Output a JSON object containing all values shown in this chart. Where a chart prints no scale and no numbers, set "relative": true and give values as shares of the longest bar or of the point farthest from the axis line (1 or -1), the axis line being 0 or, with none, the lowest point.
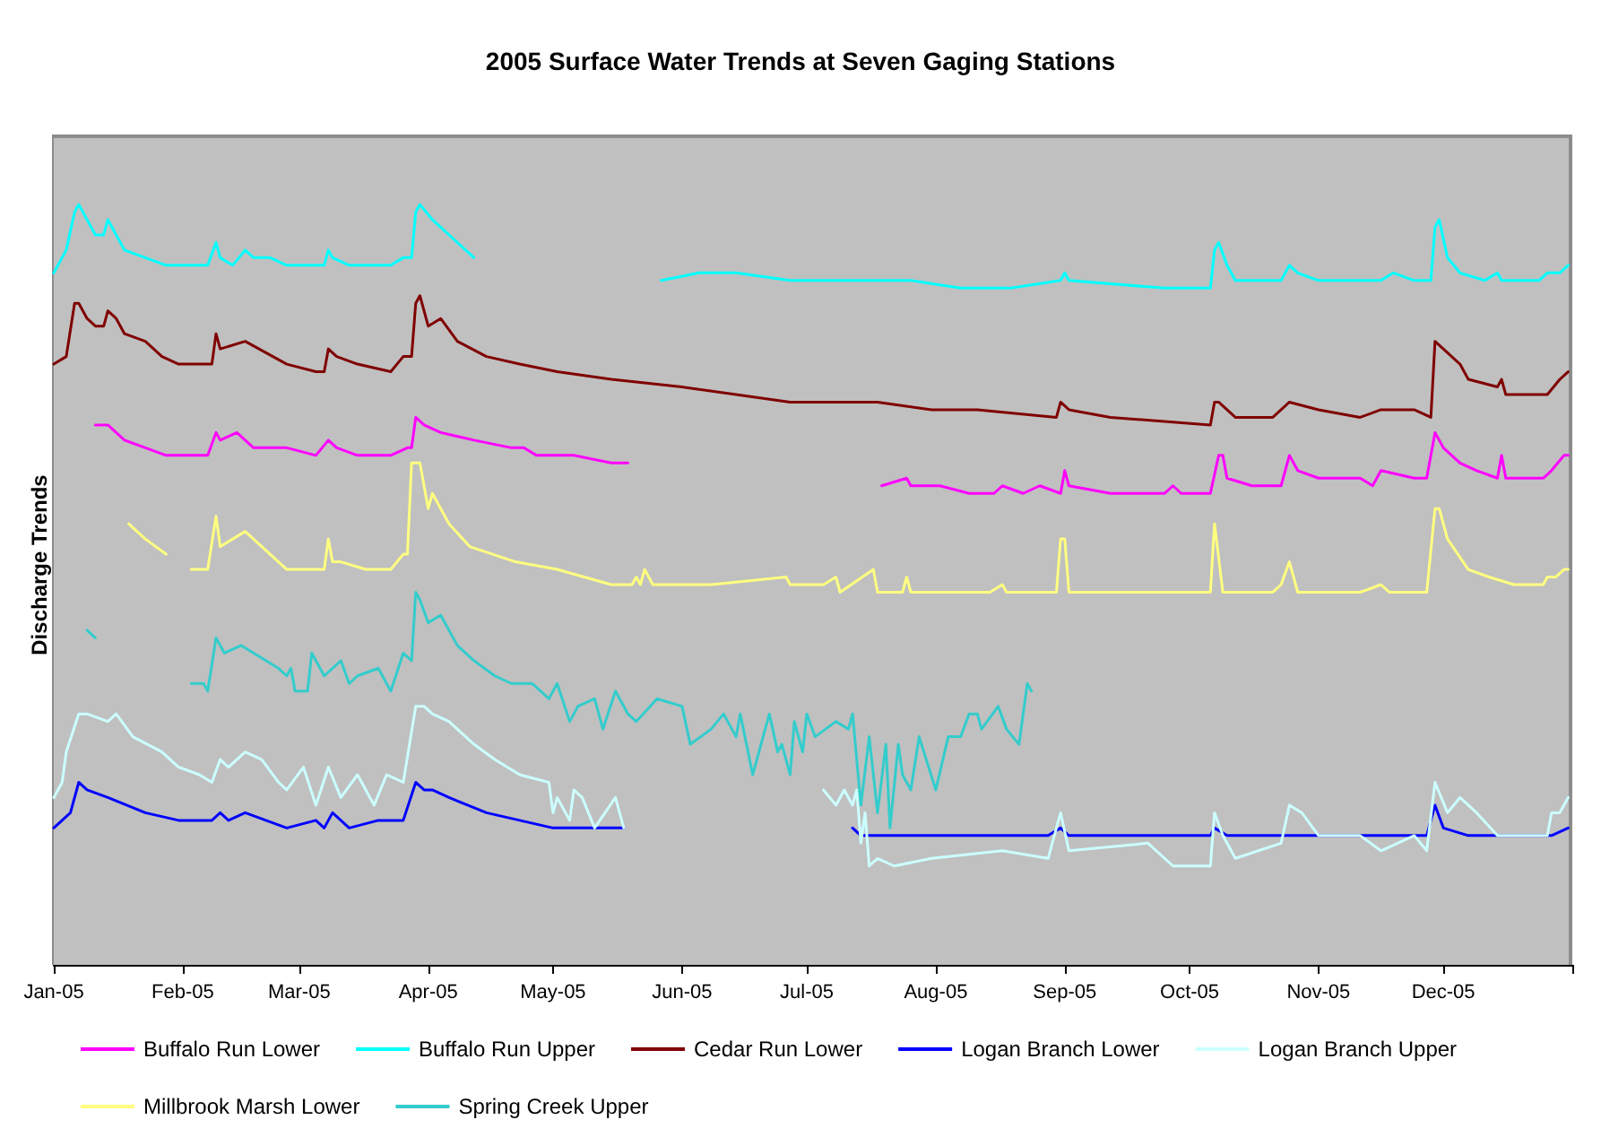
{
  "chart_data": {
    "type": "line",
    "title": "2005 Surface Water Trends at Seven Gaging Stations",
    "ylabel": "Discharge Trends",
    "relative": true,
    "legend": "bottom",
    "marker": "none",
    "line_style": "solid",
    "xlim": [
      "2005-01-01",
      "2006-01-01"
    ],
    "xticks": [
      {
        "value": "2005-01-01",
        "label": "Jan-05"
      },
      {
        "value": "2005-02-01",
        "label": "Feb-05"
      },
      {
        "value": "2005-03-01",
        "label": "Mar-05"
      },
      {
        "value": "2005-04-01",
        "label": "Apr-05"
      },
      {
        "value": "2005-05-01",
        "label": "May-05"
      },
      {
        "value": "2005-06-01",
        "label": "Jun-05"
      },
      {
        "value": "2005-07-01",
        "label": "Jul-05"
      },
      {
        "value": "2005-08-01",
        "label": "Aug-05"
      },
      {
        "value": "2005-09-01",
        "label": "Sep-05"
      },
      {
        "value": "2005-10-01",
        "label": "Oct-05"
      },
      {
        "value": "2005-11-01",
        "label": "Nov-05"
      },
      {
        "value": "2005-12-01",
        "label": "Dec-05"
      },
      {
        "value": "2006-01-01",
        "label": null
      }
    ],
    "series": [
      {
        "name": "Buffalo Run Lower",
        "color": "#ff00ff",
        "x": [
          "2005-01-11",
          "2005-01-12",
          "2005-01-14",
          "2005-01-18",
          "2005-01-23",
          "2005-01-28",
          "2005-01-31",
          "2005-02-07",
          "2005-02-09",
          "2005-02-10",
          "2005-02-14",
          "2005-02-18",
          "2005-02-26",
          "2005-03-05",
          "2005-03-08",
          "2005-03-10",
          "2005-03-15",
          "2005-03-23",
          "2005-03-27",
          "2005-03-28",
          "2005-03-29",
          "2005-03-31",
          "2005-04-04",
          "2005-04-12",
          "2005-04-21",
          "2005-04-24",
          "2005-04-27",
          "2005-05-06",
          "2005-05-15",
          "2005-05-16",
          "2005-05-19",
          "2005-06-20",
          "2005-07-19",
          "2005-07-25",
          "2005-07-26",
          "2005-08-02",
          "2005-08-09",
          "2005-08-15",
          "2005-08-17",
          "2005-08-22",
          "2005-08-26",
          "2005-08-31",
          "2005-09-01",
          "2005-09-02",
          "2005-09-12",
          "2005-09-25",
          "2005-09-27",
          "2005-09-29",
          "2005-10-06",
          "2005-10-08",
          "2005-10-09",
          "2005-10-10",
          "2005-10-16",
          "2005-10-23",
          "2005-10-25",
          "2005-10-27",
          "2005-11-01",
          "2005-11-11",
          "2005-11-14",
          "2005-11-16",
          "2005-11-24",
          "2005-11-27",
          "2005-11-29",
          "2005-12-01",
          "2005-12-05",
          "2005-12-09",
          "2005-12-14",
          "2005-12-15",
          "2005-12-16",
          "2005-12-25",
          "2005-12-27",
          "2005-12-30",
          "2005-12-31"
        ],
        "values": [
          0.71,
          0.71,
          0.71,
          0.69,
          0.68,
          0.67,
          0.67,
          0.67,
          0.7,
          0.69,
          0.7,
          0.68,
          0.68,
          0.67,
          0.69,
          0.68,
          0.67,
          0.67,
          0.68,
          0.68,
          0.72,
          0.71,
          0.7,
          0.69,
          0.68,
          0.68,
          0.67,
          0.67,
          0.66,
          0.66,
          0.66,
          null,
          0.63,
          0.64,
          0.63,
          0.63,
          0.62,
          0.62,
          0.63,
          0.62,
          0.63,
          0.62,
          0.65,
          0.63,
          0.62,
          0.62,
          0.63,
          0.62,
          0.62,
          0.67,
          0.67,
          0.64,
          0.63,
          0.63,
          0.67,
          0.65,
          0.64,
          0.64,
          0.63,
          0.65,
          0.64,
          0.64,
          0.7,
          0.68,
          0.66,
          0.65,
          0.64,
          0.67,
          0.64,
          0.64,
          0.65,
          0.67,
          0.67
        ]
      },
      {
        "name": "Buffalo Run Upper",
        "color": "#00ffff",
        "x": [
          "2005-01-01",
          "2005-01-04",
          "2005-01-06",
          "2005-01-07",
          "2005-01-09",
          "2005-01-11",
          "2005-01-13",
          "2005-01-14",
          "2005-01-16",
          "2005-01-18",
          "2005-01-23",
          "2005-01-28",
          "2005-01-31",
          "2005-02-05",
          "2005-02-07",
          "2005-02-09",
          "2005-02-10",
          "2005-02-13",
          "2005-02-16",
          "2005-02-18",
          "2005-02-22",
          "2005-02-26",
          "2005-03-05",
          "2005-03-07",
          "2005-03-08",
          "2005-03-09",
          "2005-03-13",
          "2005-03-23",
          "2005-03-26",
          "2005-03-28",
          "2005-03-29",
          "2005-03-30",
          "2005-04-02",
          "2005-04-04",
          "2005-04-08",
          "2005-04-12",
          "2005-04-20",
          "2005-05-27",
          "2005-06-05",
          "2005-06-08",
          "2005-06-14",
          "2005-06-27",
          "2005-07-05",
          "2005-07-07",
          "2005-07-18",
          "2005-07-26",
          "2005-08-07",
          "2005-08-19",
          "2005-08-31",
          "2005-09-01",
          "2005-09-02",
          "2005-09-25",
          "2005-10-06",
          "2005-10-07",
          "2005-10-08",
          "2005-10-10",
          "2005-10-12",
          "2005-10-23",
          "2005-10-25",
          "2005-10-27",
          "2005-11-01",
          "2005-11-16",
          "2005-11-19",
          "2005-11-24",
          "2005-11-28",
          "2005-11-29",
          "2005-11-30",
          "2005-12-02",
          "2005-12-05",
          "2005-12-11",
          "2005-12-14",
          "2005-12-15",
          "2005-12-24",
          "2005-12-26",
          "2005-12-29",
          "2005-12-31"
        ],
        "values": [
          0.91,
          0.94,
          0.99,
          1.0,
          0.98,
          0.96,
          0.96,
          0.98,
          0.96,
          0.94,
          0.93,
          0.92,
          0.92,
          0.92,
          0.92,
          0.95,
          0.93,
          0.92,
          0.94,
          0.93,
          0.93,
          0.92,
          0.92,
          0.92,
          0.94,
          0.93,
          0.92,
          0.92,
          0.93,
          0.93,
          0.99,
          1.0,
          0.98,
          0.97,
          0.95,
          0.93,
          null,
          0.9,
          0.91,
          0.91,
          0.91,
          0.9,
          0.9,
          0.9,
          0.9,
          0.9,
          0.89,
          0.89,
          0.9,
          0.91,
          0.9,
          0.89,
          0.89,
          0.94,
          0.95,
          0.92,
          0.9,
          0.9,
          0.92,
          0.91,
          0.9,
          0.9,
          0.91,
          0.9,
          0.9,
          0.97,
          0.98,
          0.93,
          0.91,
          0.9,
          0.91,
          0.9,
          0.9,
          0.91,
          0.91,
          0.92
        ]
      },
      {
        "name": "Cedar Run Lower",
        "color": "#800000",
        "x": [
          "2005-01-01",
          "2005-01-04",
          "2005-01-06",
          "2005-01-07",
          "2005-01-09",
          "2005-01-11",
          "2005-01-13",
          "2005-01-14",
          "2005-01-16",
          "2005-01-18",
          "2005-01-23",
          "2005-01-27",
          "2005-01-31",
          "2005-02-05",
          "2005-02-08",
          "2005-02-09",
          "2005-02-10",
          "2005-02-16",
          "2005-02-26",
          "2005-03-05",
          "2005-03-07",
          "2005-03-08",
          "2005-03-10",
          "2005-03-15",
          "2005-03-23",
          "2005-03-26",
          "2005-03-28",
          "2005-03-29",
          "2005-03-30",
          "2005-04-01",
          "2005-04-04",
          "2005-04-08",
          "2005-04-15",
          "2005-04-23",
          "2005-05-02",
          "2005-05-15",
          "2005-06-01",
          "2005-06-14",
          "2005-06-27",
          "2005-07-04",
          "2005-07-08",
          "2005-07-18",
          "2005-07-31",
          "2005-08-11",
          "2005-08-30",
          "2005-08-31",
          "2005-09-02",
          "2005-09-12",
          "2005-10-06",
          "2005-10-07",
          "2005-10-08",
          "2005-10-12",
          "2005-10-21",
          "2005-10-25",
          "2005-11-01",
          "2005-11-11",
          "2005-11-16",
          "2005-11-24",
          "2005-11-28",
          "2005-11-29",
          "2005-12-01",
          "2005-12-05",
          "2005-12-07",
          "2005-12-14",
          "2005-12-15",
          "2005-12-16",
          "2005-12-23",
          "2005-12-26",
          "2005-12-29",
          "2005-12-31"
        ],
        "values": [
          0.79,
          0.8,
          0.87,
          0.87,
          0.85,
          0.84,
          0.84,
          0.86,
          0.85,
          0.83,
          0.82,
          0.8,
          0.79,
          0.79,
          0.79,
          0.83,
          0.81,
          0.82,
          0.79,
          0.78,
          0.78,
          0.81,
          0.8,
          0.79,
          0.78,
          0.8,
          0.8,
          0.87,
          0.88,
          0.84,
          0.85,
          0.82,
          0.8,
          0.79,
          0.78,
          0.77,
          0.76,
          0.75,
          0.74,
          0.74,
          0.74,
          0.74,
          0.73,
          0.73,
          0.72,
          0.74,
          0.73,
          0.72,
          0.71,
          0.74,
          0.74,
          0.72,
          0.72,
          0.74,
          0.73,
          0.72,
          0.73,
          0.73,
          0.72,
          0.82,
          0.81,
          0.79,
          0.77,
          0.76,
          0.77,
          0.75,
          0.75,
          0.75,
          0.77,
          0.78
        ]
      },
      {
        "name": "Logan Branch Lower",
        "color": "#0000ff",
        "x": [
          "2005-01-01",
          "2005-01-03",
          "2005-01-05",
          "2005-01-07",
          "2005-01-09",
          "2005-01-14",
          "2005-01-23",
          "2005-01-31",
          "2005-02-08",
          "2005-02-10",
          "2005-02-12",
          "2005-02-16",
          "2005-02-26",
          "2005-03-05",
          "2005-03-07",
          "2005-03-09",
          "2005-03-13",
          "2005-03-20",
          "2005-03-26",
          "2005-03-29",
          "2005-03-31",
          "2005-04-02",
          "2005-04-06",
          "2005-04-15",
          "2005-04-23",
          "2005-05-01",
          "2005-05-06",
          "2005-05-18",
          "2005-06-20",
          "2005-07-12",
          "2005-07-14",
          "2005-07-22",
          "2005-08-09",
          "2005-08-28",
          "2005-08-31",
          "2005-09-02",
          "2005-09-21",
          "2005-10-06",
          "2005-10-07",
          "2005-10-10",
          "2005-10-23",
          "2005-10-25",
          "2005-11-11",
          "2005-11-27",
          "2005-11-29",
          "2005-12-01",
          "2005-12-07",
          "2005-12-16",
          "2005-12-27",
          "2005-12-31"
        ],
        "values": [
          0.18,
          0.19,
          0.2,
          0.24,
          0.23,
          0.22,
          0.2,
          0.19,
          0.19,
          0.2,
          0.19,
          0.2,
          0.18,
          0.19,
          0.18,
          0.2,
          0.18,
          0.19,
          0.19,
          0.24,
          0.23,
          0.23,
          0.22,
          0.2,
          0.19,
          0.18,
          0.18,
          0.18,
          null,
          0.18,
          0.17,
          0.17,
          0.17,
          0.17,
          0.18,
          0.17,
          0.17,
          0.17,
          0.18,
          0.17,
          0.17,
          0.17,
          0.17,
          0.17,
          0.21,
          0.18,
          0.17,
          0.17,
          0.17,
          0.18
        ]
      },
      {
        "name": "Logan Branch Upper",
        "color": "#ccffff",
        "x": [
          "2005-01-01",
          "2005-01-03",
          "2005-01-04",
          "2005-01-07",
          "2005-01-09",
          "2005-01-14",
          "2005-01-16",
          "2005-01-20",
          "2005-01-27",
          "2005-01-31",
          "2005-02-05",
          "2005-02-08",
          "2005-02-10",
          "2005-02-12",
          "2005-02-16",
          "2005-02-20",
          "2005-02-24",
          "2005-02-26",
          "2005-03-02",
          "2005-03-05",
          "2005-03-08",
          "2005-03-11",
          "2005-03-15",
          "2005-03-19",
          "2005-03-22",
          "2005-03-26",
          "2005-03-29",
          "2005-03-31",
          "2005-04-02",
          "2005-04-06",
          "2005-04-12",
          "2005-04-17",
          "2005-04-23",
          "2005-04-30",
          "2005-05-01",
          "2005-05-02",
          "2005-05-05",
          "2005-05-06",
          "2005-05-08",
          "2005-05-11",
          "2005-05-16",
          "2005-05-18",
          "2005-06-20",
          "2005-07-05",
          "2005-07-08",
          "2005-07-10",
          "2005-07-12",
          "2005-07-13",
          "2005-07-14",
          "2005-07-15",
          "2005-07-16",
          "2005-07-18",
          "2005-07-22",
          "2005-07-31",
          "2005-08-17",
          "2005-08-28",
          "2005-08-31",
          "2005-09-02",
          "2005-09-21",
          "2005-09-27",
          "2005-10-06",
          "2005-10-07",
          "2005-10-09",
          "2005-10-12",
          "2005-10-23",
          "2005-10-25",
          "2005-10-28",
          "2005-11-01",
          "2005-11-11",
          "2005-11-16",
          "2005-11-24",
          "2005-11-27",
          "2005-11-29",
          "2005-12-02",
          "2005-12-05",
          "2005-12-09",
          "2005-12-14",
          "2005-12-26",
          "2005-12-27",
          "2005-12-29",
          "2005-12-31"
        ],
        "values": [
          0.22,
          0.24,
          0.28,
          0.33,
          0.33,
          0.32,
          0.33,
          0.3,
          0.28,
          0.26,
          0.25,
          0.24,
          0.27,
          0.26,
          0.28,
          0.27,
          0.24,
          0.23,
          0.26,
          0.21,
          0.26,
          0.22,
          0.25,
          0.21,
          0.25,
          0.24,
          0.34,
          0.34,
          0.33,
          0.32,
          0.29,
          0.27,
          0.25,
          0.24,
          0.2,
          0.22,
          0.19,
          0.23,
          0.22,
          0.18,
          0.22,
          0.18,
          null,
          0.23,
          0.21,
          0.23,
          0.21,
          0.23,
          0.16,
          0.2,
          0.13,
          0.14,
          0.13,
          0.14,
          0.15,
          0.14,
          0.2,
          0.15,
          0.16,
          0.13,
          0.13,
          0.2,
          0.17,
          0.14,
          0.16,
          0.21,
          0.2,
          0.17,
          0.17,
          0.15,
          0.17,
          0.15,
          0.24,
          0.2,
          0.22,
          0.2,
          0.17,
          0.17,
          0.2,
          0.2,
          0.22
        ]
      },
      {
        "name": "Millbrook Marsh Lower",
        "color": "#ffff80",
        "x": [
          "2005-01-19",
          "2005-01-23",
          "2005-01-28",
          "2005-01-31",
          "2005-02-03",
          "2005-02-07",
          "2005-02-09",
          "2005-02-10",
          "2005-02-16",
          "2005-02-20",
          "2005-02-26",
          "2005-03-05",
          "2005-03-07",
          "2005-03-08",
          "2005-03-09",
          "2005-03-11",
          "2005-03-17",
          "2005-03-23",
          "2005-03-26",
          "2005-03-27",
          "2005-03-28",
          "2005-03-30",
          "2005-04-01",
          "2005-04-02",
          "2005-04-06",
          "2005-04-11",
          "2005-04-22",
          "2005-05-02",
          "2005-05-15",
          "2005-05-20",
          "2005-05-21",
          "2005-05-22",
          "2005-05-23",
          "2005-05-25",
          "2005-05-29",
          "2005-06-08",
          "2005-06-26",
          "2005-06-27",
          "2005-07-05",
          "2005-07-08",
          "2005-07-09",
          "2005-07-17",
          "2005-07-18",
          "2005-07-24",
          "2005-07-25",
          "2005-07-26",
          "2005-08-05",
          "2005-08-14",
          "2005-08-17",
          "2005-08-18",
          "2005-08-30",
          "2005-08-31",
          "2005-09-01",
          "2005-09-02",
          "2005-09-25",
          "2005-10-06",
          "2005-10-07",
          "2005-10-09",
          "2005-10-21",
          "2005-10-23",
          "2005-10-25",
          "2005-10-27",
          "2005-11-11",
          "2005-11-16",
          "2005-11-18",
          "2005-11-27",
          "2005-11-29",
          "2005-11-30",
          "2005-12-02",
          "2005-12-07",
          "2005-12-12",
          "2005-12-18",
          "2005-12-25",
          "2005-12-26",
          "2005-12-28",
          "2005-12-30",
          "2005-12-31"
        ],
        "values": [
          0.58,
          0.56,
          0.54,
          null,
          0.52,
          0.52,
          0.59,
          0.55,
          0.57,
          0.55,
          0.52,
          0.52,
          0.52,
          0.56,
          0.53,
          0.53,
          0.52,
          0.52,
          0.54,
          0.54,
          0.66,
          0.66,
          0.6,
          0.62,
          0.58,
          0.55,
          0.53,
          0.52,
          0.5,
          0.5,
          0.51,
          0.5,
          0.52,
          0.5,
          0.5,
          0.5,
          0.51,
          0.5,
          0.5,
          0.51,
          0.49,
          0.52,
          0.49,
          0.49,
          0.51,
          0.49,
          0.49,
          0.49,
          0.5,
          0.49,
          0.49,
          0.56,
          0.56,
          0.49,
          0.49,
          0.49,
          0.58,
          0.49,
          0.49,
          0.5,
          0.53,
          0.49,
          0.49,
          0.5,
          0.49,
          0.49,
          0.6,
          0.6,
          0.56,
          0.52,
          0.51,
          0.5,
          0.5,
          0.51,
          0.51,
          0.52,
          0.52
        ]
      },
      {
        "name": "Spring Creek Upper",
        "color": "#33cccc",
        "x": [
          "2005-01-09",
          "2005-01-11",
          "2005-01-20",
          "2005-02-03",
          "2005-02-06",
          "2005-02-07",
          "2005-02-09",
          "2005-02-11",
          "2005-02-15",
          "2005-02-18",
          "2005-02-24",
          "2005-02-26",
          "2005-02-27",
          "2005-02-28",
          "2005-03-03",
          "2005-03-04",
          "2005-03-07",
          "2005-03-11",
          "2005-03-13",
          "2005-03-15",
          "2005-03-20",
          "2005-03-23",
          "2005-03-26",
          "2005-03-28",
          "2005-03-29",
          "2005-03-30",
          "2005-04-01",
          "2005-04-04",
          "2005-04-08",
          "2005-04-12",
          "2005-04-17",
          "2005-04-21",
          "2005-04-26",
          "2005-04-30",
          "2005-05-02",
          "2005-05-05",
          "2005-05-07",
          "2005-05-11",
          "2005-05-13",
          "2005-05-16",
          "2005-05-19",
          "2005-05-21",
          "2005-05-26",
          "2005-06-01",
          "2005-06-03",
          "2005-06-08",
          "2005-06-11",
          "2005-06-14",
          "2005-06-15",
          "2005-06-18",
          "2005-06-22",
          "2005-06-24",
          "2005-06-25",
          "2005-06-27",
          "2005-06-28",
          "2005-06-30",
          "2005-07-01",
          "2005-07-03",
          "2005-07-08",
          "2005-07-11",
          "2005-07-12",
          "2005-07-13",
          "2005-07-14",
          "2005-07-16",
          "2005-07-18",
          "2005-07-20",
          "2005-07-21",
          "2005-07-23",
          "2005-07-24",
          "2005-07-26",
          "2005-07-28",
          "2005-08-01",
          "2005-08-04",
          "2005-08-07",
          "2005-08-09",
          "2005-08-11",
          "2005-08-12",
          "2005-08-16",
          "2005-08-18",
          "2005-08-21",
          "2005-08-23",
          "2005-08-24"
        ],
        "values": [
          0.44,
          0.43,
          null,
          0.37,
          0.37,
          0.36,
          0.43,
          0.41,
          0.42,
          0.41,
          0.39,
          0.38,
          0.39,
          0.36,
          0.36,
          0.41,
          0.38,
          0.4,
          0.37,
          0.38,
          0.39,
          0.36,
          0.41,
          0.4,
          0.49,
          0.48,
          0.45,
          0.46,
          0.42,
          0.4,
          0.38,
          0.37,
          0.37,
          0.35,
          0.37,
          0.32,
          0.34,
          0.35,
          0.31,
          0.36,
          0.33,
          0.32,
          0.35,
          0.34,
          0.29,
          0.31,
          0.33,
          0.3,
          0.33,
          0.25,
          0.33,
          0.28,
          0.29,
          0.25,
          0.32,
          0.28,
          0.33,
          0.3,
          0.32,
          0.31,
          0.33,
          0.27,
          0.21,
          0.3,
          0.2,
          0.29,
          0.18,
          0.29,
          0.25,
          0.23,
          0.3,
          0.23,
          0.3,
          0.3,
          0.33,
          0.33,
          0.31,
          0.34,
          0.31,
          0.29,
          0.37,
          0.36
        ]
      }
    ]
  }
}
